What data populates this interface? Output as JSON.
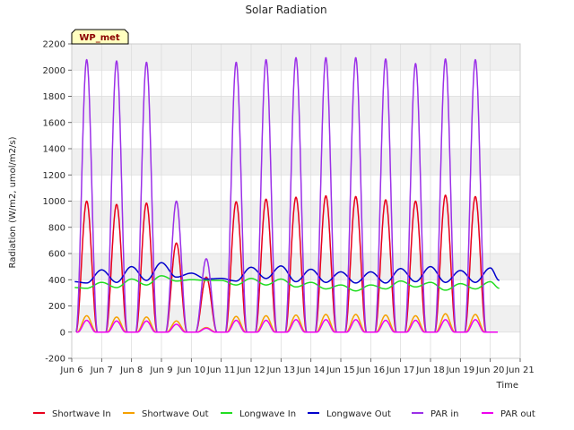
{
  "chart_data": {
    "type": "line",
    "title": "Solar Radiation",
    "xlabel": "Time",
    "ylabel": "Radiation (W/m2, umol/m2/s)",
    "badge": "WP_met",
    "xlim": [
      6,
      21
    ],
    "ylim": [
      -200,
      2200
    ],
    "x_ticks": [
      6,
      7,
      8,
      9,
      10,
      11,
      12,
      13,
      14,
      15,
      16,
      17,
      18,
      19,
      20,
      21
    ],
    "x_tick_labels": [
      "Jun 6",
      "Jun 7",
      "Jun 8",
      "Jun 9",
      "Jun 10",
      "Jun 11",
      "Jun 12",
      "Jun 13",
      "Jun 14",
      "Jun 15",
      "Jun 16",
      "Jun 17",
      "Jun 18",
      "Jun 19",
      "Jun 20",
      "Jun 21"
    ],
    "y_ticks": [
      -200,
      0,
      200,
      400,
      600,
      800,
      1000,
      1200,
      1400,
      1600,
      1800,
      2000,
      2200
    ],
    "grid": true,
    "legend_position": "bottom",
    "days": [
      6.5,
      7.5,
      8.5,
      9.5,
      10.5,
      11.5,
      12.5,
      13.5,
      14.5,
      15.5,
      16.5,
      17.5,
      18.5,
      19.5
    ],
    "series": [
      {
        "name": "Shortwave In",
        "color": "#e8001c",
        "kind": "diurnal",
        "width": 0.36,
        "peaks": [
          1000,
          975,
          985,
          680,
          420,
          995,
          1015,
          1030,
          1040,
          1035,
          1010,
          1000,
          1045,
          1035
        ],
        "night": 0
      },
      {
        "name": "Shortwave Out",
        "color": "#f5a000",
        "kind": "diurnal",
        "width": 0.32,
        "peaks": [
          125,
          115,
          115,
          85,
          35,
          120,
          125,
          130,
          135,
          135,
          130,
          125,
          140,
          135
        ],
        "night": 0
      },
      {
        "name": "Longwave In",
        "color": "#22dd22",
        "kind": "smooth",
        "x": [
          6.1,
          6.5,
          7.0,
          7.5,
          8.0,
          8.5,
          9.0,
          9.5,
          10.0,
          10.5,
          11.0,
          11.5,
          12.0,
          12.5,
          13.0,
          13.5,
          14.0,
          14.5,
          15.0,
          15.5,
          16.0,
          16.5,
          17.0,
          17.5,
          18.0,
          18.5,
          19.0,
          19.5,
          20.0,
          20.3
        ],
        "y": [
          340,
          335,
          380,
          340,
          405,
          360,
          430,
          390,
          400,
          395,
          395,
          360,
          410,
          360,
          405,
          345,
          380,
          330,
          360,
          315,
          360,
          330,
          390,
          345,
          380,
          320,
          370,
          330,
          385,
          335
        ]
      },
      {
        "name": "Longwave Out",
        "color": "#0000cc",
        "kind": "smooth",
        "x": [
          6.1,
          6.5,
          7.0,
          7.5,
          8.0,
          8.5,
          9.0,
          9.5,
          10.0,
          10.5,
          11.0,
          11.5,
          12.0,
          12.5,
          13.0,
          13.5,
          14.0,
          14.5,
          15.0,
          15.5,
          16.0,
          16.5,
          17.0,
          17.5,
          18.0,
          18.5,
          19.0,
          19.5,
          20.0,
          20.3
        ],
        "y": [
          385,
          375,
          475,
          380,
          500,
          395,
          530,
          420,
          450,
          405,
          410,
          390,
          495,
          410,
          505,
          385,
          480,
          380,
          460,
          375,
          460,
          375,
          485,
          385,
          500,
          380,
          470,
          380,
          490,
          395
        ]
      },
      {
        "name": "PAR in",
        "color": "#9b30e8",
        "kind": "diurnal",
        "width": 0.36,
        "peaks": [
          2080,
          2070,
          2060,
          1000,
          560,
          2060,
          2080,
          2095,
          2095,
          2095,
          2085,
          2050,
          2085,
          2080
        ],
        "night": 0
      },
      {
        "name": "PAR out",
        "color": "#ee00ee",
        "kind": "diurnal",
        "width": 0.3,
        "peaks": [
          90,
          85,
          85,
          60,
          30,
          90,
          90,
          95,
          95,
          95,
          90,
          90,
          95,
          95
        ],
        "night": 0
      }
    ]
  }
}
